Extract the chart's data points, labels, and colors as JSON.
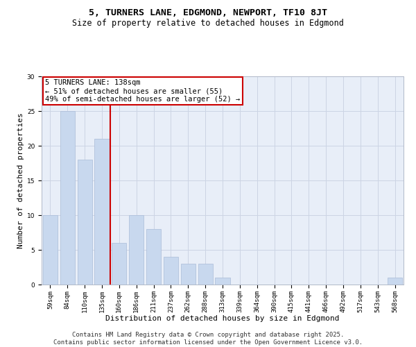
{
  "title_line1": "5, TURNERS LANE, EDGMOND, NEWPORT, TF10 8JT",
  "title_line2": "Size of property relative to detached houses in Edgmond",
  "xlabel": "Distribution of detached houses by size in Edgmond",
  "ylabel": "Number of detached properties",
  "categories": [
    "59sqm",
    "84sqm",
    "110sqm",
    "135sqm",
    "160sqm",
    "186sqm",
    "211sqm",
    "237sqm",
    "262sqm",
    "288sqm",
    "313sqm",
    "339sqm",
    "364sqm",
    "390sqm",
    "415sqm",
    "441sqm",
    "466sqm",
    "492sqm",
    "517sqm",
    "543sqm",
    "568sqm"
  ],
  "values": [
    10,
    25,
    18,
    21,
    6,
    10,
    8,
    4,
    3,
    3,
    1,
    0,
    0,
    0,
    0,
    0,
    0,
    0,
    0,
    0,
    1
  ],
  "bar_color": "#c8d8ee",
  "bar_edge_color": "#aabcd8",
  "vline_x": 3.5,
  "vline_color": "#cc0000",
  "annotation_text": "5 TURNERS LANE: 138sqm\n← 51% of detached houses are smaller (55)\n49% of semi-detached houses are larger (52) →",
  "annotation_box_color": "#ffffff",
  "annotation_box_edge_color": "#cc0000",
  "ylim": [
    0,
    30
  ],
  "yticks": [
    0,
    5,
    10,
    15,
    20,
    25,
    30
  ],
  "grid_color": "#ccd4e4",
  "background_color": "#e8eef8",
  "footer_line1": "Contains HM Land Registry data © Crown copyright and database right 2025.",
  "footer_line2": "Contains public sector information licensed under the Open Government Licence v3.0.",
  "title_fontsize": 9.5,
  "subtitle_fontsize": 8.5,
  "axis_label_fontsize": 8,
  "tick_fontsize": 6.5,
  "annotation_fontsize": 7.5,
  "footer_fontsize": 6.5
}
